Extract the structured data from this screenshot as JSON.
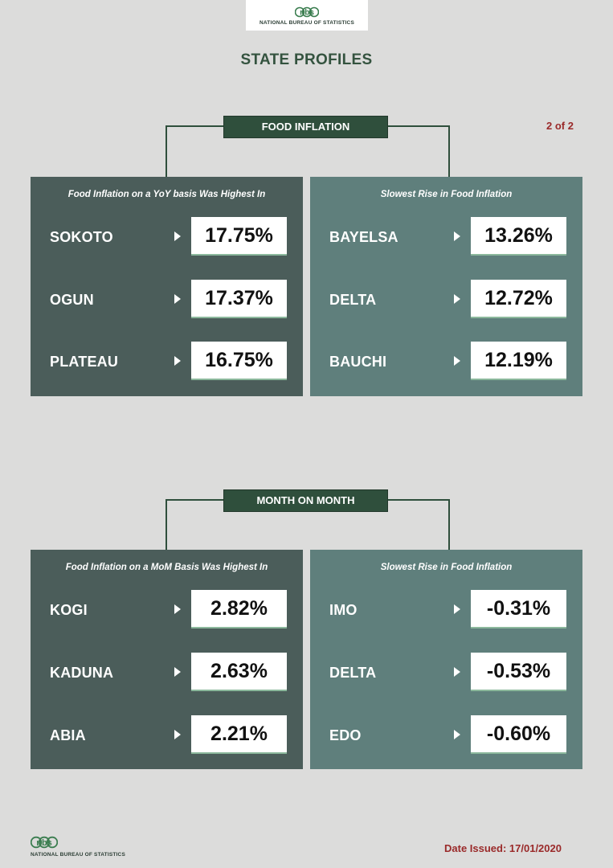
{
  "header": {
    "logo_text": "nbs",
    "logo_caption": "NATIONAL BUREAU OF STATISTICS",
    "title": "STATE PROFILES",
    "page_count": "2 of 2"
  },
  "sections": [
    {
      "label": "FOOD INFLATION",
      "panels": [
        {
          "heading": "Food Inflation on a YoY basis Was Highest In",
          "rows": [
            {
              "state": "SOKOTO",
              "value": "17.75%"
            },
            {
              "state": "OGUN",
              "value": "17.37%"
            },
            {
              "state": "PLATEAU",
              "value": "16.75%"
            }
          ]
        },
        {
          "heading": "Slowest Rise in Food Inflation",
          "rows": [
            {
              "state": "BAYELSA",
              "value": "13.26%"
            },
            {
              "state": "DELTA",
              "value": "12.72%"
            },
            {
              "state": "BAUCHI",
              "value": "12.19%"
            }
          ]
        }
      ]
    },
    {
      "label": "MONTH ON MONTH",
      "panels": [
        {
          "heading": "Food Inflation on a MoM Basis Was Highest In",
          "rows": [
            {
              "state": "KOGI",
              "value": "2.82%"
            },
            {
              "state": "KADUNA",
              "value": "2.63%"
            },
            {
              "state": "ABIA",
              "value": "2.21%"
            }
          ]
        },
        {
          "heading": "Slowest Rise in Food Inflation",
          "rows": [
            {
              "state": "IMO",
              "value": "-0.31%"
            },
            {
              "state": "DELTA",
              "value": "-0.53%"
            },
            {
              "state": "EDO",
              "value": "-0.60%"
            }
          ]
        }
      ]
    }
  ],
  "footer": {
    "logo_text": "nbs",
    "logo_caption": "NATIONAL BUREAU OF STATISTICS",
    "date_issued": "Date Issued: 17/01/2020"
  },
  "colors": {
    "background": "#dcdcdb",
    "title_green": "#34533f",
    "label_green": "#2f4f3c",
    "panel_dark": "#4b5d5a",
    "panel_light": "#5f7f7c",
    "accent_red": "#9a2a2a"
  }
}
